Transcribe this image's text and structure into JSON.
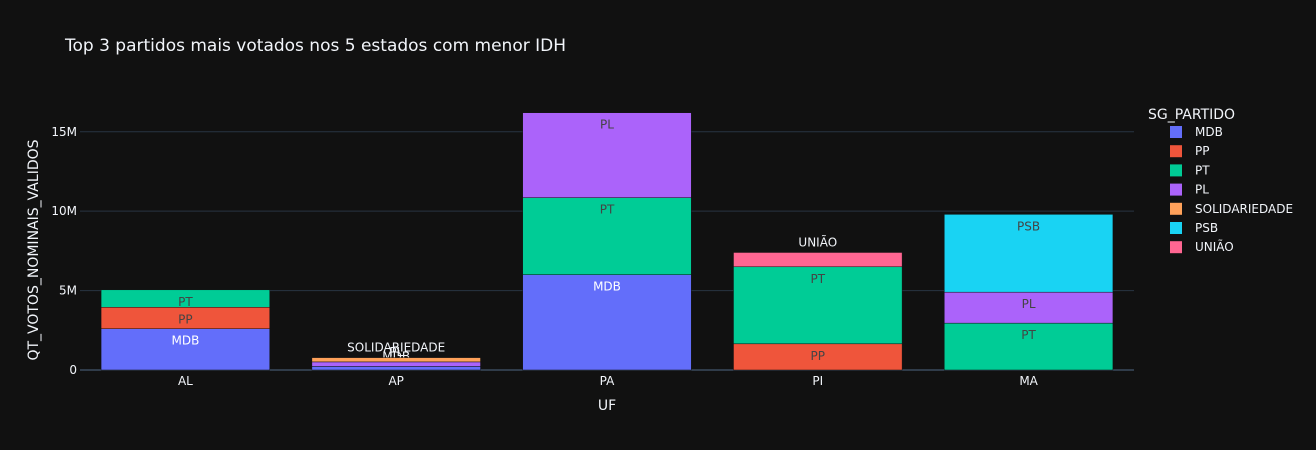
{
  "chart_data": {
    "type": "bar",
    "stacked": true,
    "title": "Top 3 partidos mais votados nos 5 estados com menor IDH",
    "xlabel": "UF",
    "ylabel": "QT_VOTOS_NOMINAIS_VALIDOS",
    "categories": [
      "AL",
      "AP",
      "PA",
      "PI",
      "MA"
    ],
    "ylim": [
      0,
      17000000
    ],
    "yticks": [
      0,
      5000000,
      10000000,
      15000000
    ],
    "ytick_labels": [
      "0",
      "5M",
      "10M",
      "15M"
    ],
    "legend_title": "SG_PARTIDO",
    "legend_position": "right",
    "grid": true,
    "series": [
      {
        "name": "MDB",
        "color": "#636efa",
        "values": [
          2600000,
          230000,
          6000000,
          0,
          0
        ]
      },
      {
        "name": "PP",
        "color": "#ef553b",
        "values": [
          1350000,
          0,
          0,
          1650000,
          0
        ]
      },
      {
        "name": "PT",
        "color": "#00cc96",
        "values": [
          1100000,
          0,
          4850000,
          4850000,
          2950000
        ]
      },
      {
        "name": "PL",
        "color": "#ab63fa",
        "values": [
          0,
          280000,
          5350000,
          0,
          1950000
        ]
      },
      {
        "name": "SOLIDARIEDADE",
        "color": "#ffa15a",
        "values": [
          0,
          270000,
          0,
          0,
          0
        ]
      },
      {
        "name": "PSB",
        "color": "#19d3f3",
        "values": [
          0,
          0,
          0,
          0,
          4900000
        ]
      },
      {
        "name": "UNIÃO",
        "color": "#ff6692",
        "values": [
          0,
          0,
          0,
          900000,
          0
        ]
      }
    ]
  }
}
